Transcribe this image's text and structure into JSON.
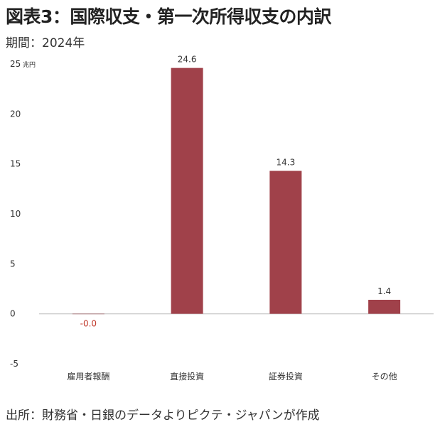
{
  "title": "図表3：国際収支・第一次所得収支の内訳",
  "period": "期間：2024年",
  "source": "出所：財務省・日銀のデータよりピクテ・ジャパンが作成",
  "colors": {
    "bar": "#a0414a",
    "negative_label": "#c0392b",
    "axis": "#cfcfcf"
  },
  "chart_data": {
    "type": "bar",
    "categories": [
      "雇用者報酬",
      "直接投資",
      "証券投資",
      "その他"
    ],
    "values": [
      -0.0,
      24.6,
      14.3,
      1.4
    ],
    "data_labels": [
      "-0.0",
      "24.6",
      "14.3",
      "1.4"
    ],
    "y_ticks": [
      "-5",
      "0",
      "5",
      "10",
      "15",
      "20",
      "25"
    ],
    "y_tick_values": [
      -5,
      0,
      5,
      10,
      15,
      20,
      25
    ],
    "ylim": [
      -5,
      25
    ],
    "unit": "兆円",
    "grid": false
  }
}
